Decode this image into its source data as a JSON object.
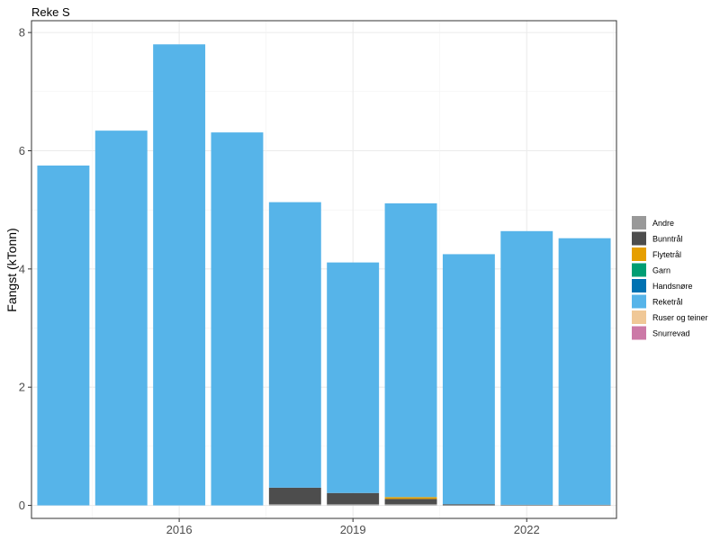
{
  "chart_data": {
    "type": "bar",
    "stacked": true,
    "title": "Reke S",
    "xlabel": "",
    "ylabel": "Fangst (kTonn)",
    "x": [
      2014,
      2015,
      2016,
      2017,
      2018,
      2019,
      2020,
      2021,
      2022,
      2023
    ],
    "x_tick_values": [
      2016,
      2019,
      2022
    ],
    "x_tick_labels": [
      "2016",
      "2019",
      "2022"
    ],
    "ylim": [
      -0.22,
      8.2
    ],
    "y_ticks": [
      0,
      2,
      4,
      6,
      8
    ],
    "grid": true,
    "legend_position": "right",
    "series": [
      {
        "name": "Andre",
        "color": "#999999",
        "values": [
          0,
          0,
          0,
          0,
          0.02,
          0.02,
          0.02,
          0,
          0,
          0
        ]
      },
      {
        "name": "Bunntrål",
        "color": "#4d4d4d",
        "values": [
          0,
          0,
          0,
          0,
          0.28,
          0.19,
          0.09,
          0.02,
          0.01,
          0.01
        ]
      },
      {
        "name": "Flytetrål",
        "color": "#e69f00",
        "values": [
          0,
          0,
          0,
          0,
          0,
          0,
          0.03,
          0,
          0,
          0
        ]
      },
      {
        "name": "Garn",
        "color": "#009e73",
        "values": [
          0,
          0,
          0,
          0,
          0,
          0,
          0,
          0,
          0,
          0
        ]
      },
      {
        "name": "Handsnøre",
        "color": "#0072b2",
        "values": [
          0,
          0,
          0,
          0,
          0,
          0,
          0,
          0,
          0,
          0
        ]
      },
      {
        "name": "Reketrål",
        "color": "#56b4e9",
        "values": [
          5.75,
          6.34,
          7.8,
          6.31,
          4.83,
          3.9,
          4.97,
          4.23,
          4.63,
          4.51
        ]
      },
      {
        "name": "Ruser og teiner",
        "color": "#f0c897",
        "values": [
          0,
          0,
          0,
          0,
          0,
          0,
          0,
          0,
          0,
          0
        ]
      },
      {
        "name": "Snurrevad",
        "color": "#cc79a7",
        "values": [
          0,
          0,
          0,
          0,
          0,
          0,
          0,
          0,
          0,
          0
        ]
      }
    ]
  }
}
